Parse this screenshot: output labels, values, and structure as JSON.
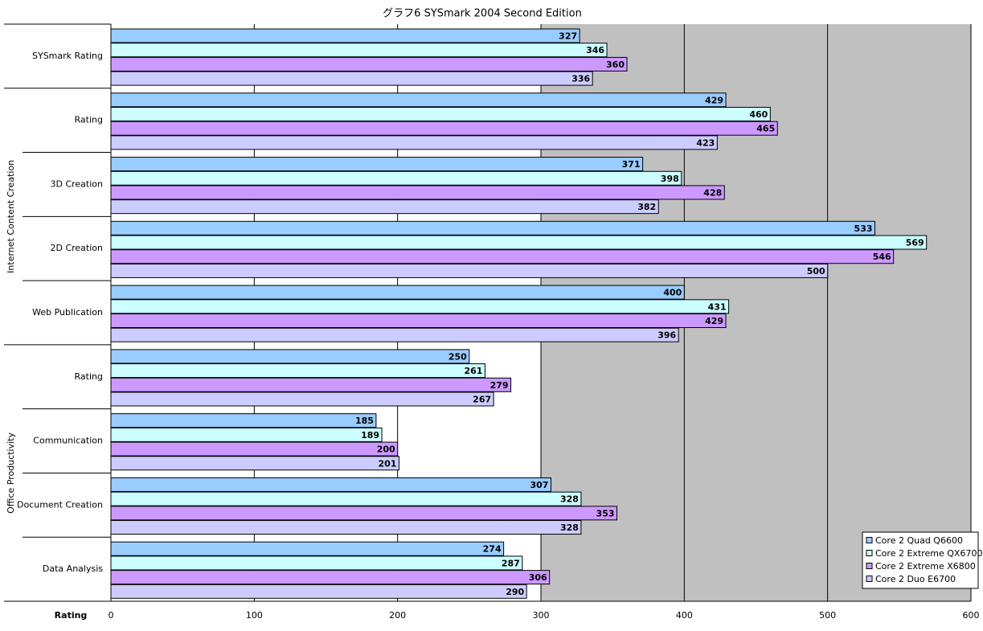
{
  "chart_data": {
    "type": "barh",
    "title": "グラフ6  SYSmark 2004 Second Edition",
    "x_label": "Rating",
    "categories": [
      "SYSmark Rating",
      "Rating",
      "3D Creation",
      "2D Creation",
      "Web Publication",
      "Rating",
      "Communication",
      "Document Creation",
      "Data Analysis"
    ],
    "category_groups": [
      null,
      "Internet Content Creation",
      null,
      null,
      null,
      "Office Productivity",
      null,
      null,
      null
    ],
    "series": [
      {
        "name": "Core 2 Quad Q6600",
        "color": "#99ccff",
        "values": [
          327,
          429,
          371,
          533,
          400,
          250,
          185,
          307,
          274
        ]
      },
      {
        "name": "Core 2 Extreme QX6700",
        "color": "#ccffff",
        "values": [
          346,
          460,
          398,
          569,
          431,
          261,
          189,
          328,
          287
        ]
      },
      {
        "name": "Core 2 Extreme X6800",
        "color": "#cc99ff",
        "values": [
          360,
          465,
          428,
          546,
          429,
          279,
          200,
          353,
          306
        ]
      },
      {
        "name": "Core 2 Duo E6700",
        "color": "#ccccff",
        "values": [
          336,
          423,
          382,
          500,
          396,
          267,
          201,
          328,
          290
        ]
      }
    ],
    "xlim": [
      0,
      600
    ],
    "xticks": [
      0,
      100,
      200,
      300,
      400,
      500,
      600
    ],
    "grid": true,
    "legend": "lower right"
  }
}
